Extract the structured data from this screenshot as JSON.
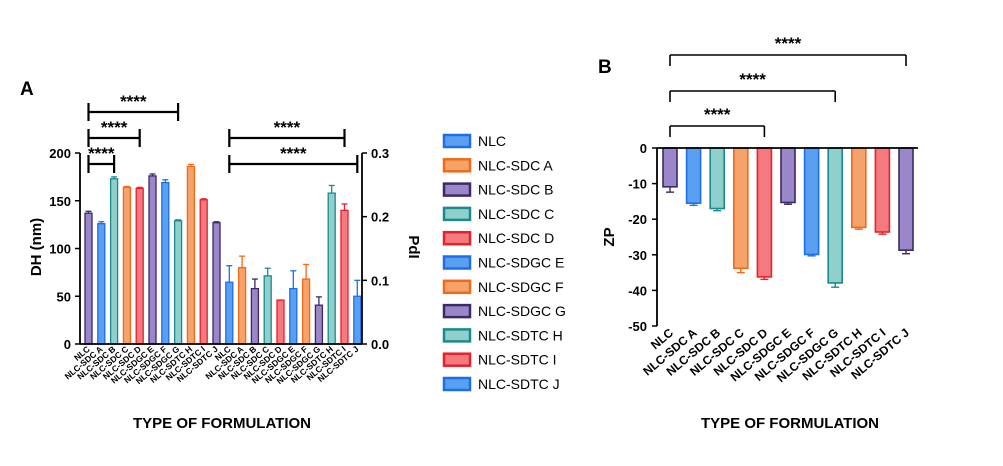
{
  "colors": {
    "blue": "#1e6fe6",
    "blue_fill": "#5aa0f2",
    "orange": "#f06a1a",
    "orange_fill": "#f5a36a",
    "purple": "#3b2a66",
    "purple_fill": "#9a86c8",
    "teal": "#1c8a8c",
    "teal_fill": "#8fd0cc",
    "red": "#e8202a",
    "red_fill": "#f47a80"
  },
  "chart_data": [
    {
      "panel": "A",
      "type": "bar",
      "xlabel": "TYPE OF FORMULATION",
      "ylabel": "DH (nm)",
      "y2label": "PdI",
      "ylim": [
        0,
        200
      ],
      "y_ticks": [
        "0",
        "50",
        "100",
        "150",
        "200"
      ],
      "y2lim": [
        0,
        0.3
      ],
      "y2_ticks": [
        "0.0",
        "0.1",
        "0.2",
        "0.3"
      ],
      "categories": [
        "NLC",
        "NLC-SDC A",
        "NLC-SDC B",
        "NLC-SDC C",
        "NLC-SDC D",
        "NLC-SDGC E",
        "NLC-SDGC F",
        "NLC-SDGC G",
        "NLC-SDTC H",
        "NLC-SDTC I",
        "NLC-SDTC J"
      ],
      "colors": [
        "purple",
        "blue",
        "teal",
        "orange",
        "red",
        "purple",
        "blue",
        "teal",
        "orange",
        "red",
        "purple"
      ],
      "pdi_colors": [
        "blue",
        "orange",
        "purple",
        "teal",
        "red",
        "blue",
        "orange",
        "purple",
        "teal",
        "red",
        "blue"
      ],
      "series": [
        {
          "axis": "DH",
          "values": [
            137,
            126,
            173,
            164,
            163,
            176,
            169,
            129,
            186,
            151,
            127
          ],
          "errors": [
            2,
            2,
            2,
            1,
            1,
            2,
            3,
            1,
            2,
            1,
            1
          ]
        },
        {
          "axis": "PdI",
          "values": [
            0.097,
            0.12,
            0.087,
            0.107,
            0.069,
            0.087,
            0.102,
            0.061,
            0.237,
            0.21,
            0.075
          ],
          "errors": [
            0.026,
            0.018,
            0.015,
            0.012,
            0.0,
            0.028,
            0.023,
            0.013,
            0.012,
            0.01,
            0.025
          ]
        }
      ],
      "significance": [
        {
          "label": "****",
          "from": 0,
          "to": 2,
          "axis": "DH"
        },
        {
          "label": "****",
          "from": 0,
          "to": 4,
          "axis": "DH"
        },
        {
          "label": "****",
          "from": 0,
          "to": 7,
          "axis": "DH"
        },
        {
          "label": "****",
          "from": 0,
          "to": 9,
          "axis": "PdI"
        },
        {
          "label": "****",
          "from": 0,
          "to": 10,
          "axis": "PdI"
        }
      ],
      "legend": {
        "placement": "right",
        "entries": [
          {
            "label": "NLC",
            "color": "blue"
          },
          {
            "label": "NLC-SDC A",
            "color": "orange"
          },
          {
            "label": "NLC-SDC B",
            "color": "purple"
          },
          {
            "label": "NLC-SDC C",
            "color": "teal"
          },
          {
            "label": "NLC-SDC D",
            "color": "red"
          },
          {
            "label": "NLC-SDGC E",
            "color": "blue"
          },
          {
            "label": "NLC-SDGC F",
            "color": "orange"
          },
          {
            "label": "NLC-SDGC G",
            "color": "purple"
          },
          {
            "label": "NLC-SDTC H",
            "color": "teal"
          },
          {
            "label": "NLC-SDTC I",
            "color": "red"
          },
          {
            "label": "NLC-SDTC J",
            "color": "blue"
          }
        ]
      }
    },
    {
      "panel": "B",
      "type": "bar",
      "xlabel": "TYPE OF FORMULATION",
      "ylabel": "ZP",
      "ylim": [
        -50,
        0
      ],
      "y_ticks": [
        "0",
        "-10",
        "-20",
        "-30",
        "-40",
        "-50"
      ],
      "categories": [
        "NLC",
        "NLC-SDC A",
        "NLC-SDC B",
        "NLC-SDC C",
        "NLC-SDC D",
        "NLC-SDGC E",
        "NLC-SDGC F",
        "NLC-SDGC G",
        "NLC-SDTC H",
        "NLC-SDTC I",
        "NLC-SDTC J"
      ],
      "colors": [
        "purple",
        "blue",
        "teal",
        "orange",
        "red",
        "purple",
        "blue",
        "teal",
        "orange",
        "red",
        "purple"
      ],
      "values": [
        -10.9,
        -15.5,
        -17.0,
        -33.8,
        -36.2,
        -15.3,
        -29.9,
        -37.9,
        -22.3,
        -23.6,
        -28.7
      ],
      "errors": [
        1.5,
        0.6,
        0.6,
        1.2,
        0.7,
        0.5,
        0.4,
        1.2,
        0.5,
        0.6,
        1.0
      ],
      "significance": [
        {
          "label": "****",
          "from": 0,
          "to": 4
        },
        {
          "label": "****",
          "from": 0,
          "to": 7
        },
        {
          "label": "****",
          "from": 0,
          "to": 10
        }
      ]
    }
  ]
}
